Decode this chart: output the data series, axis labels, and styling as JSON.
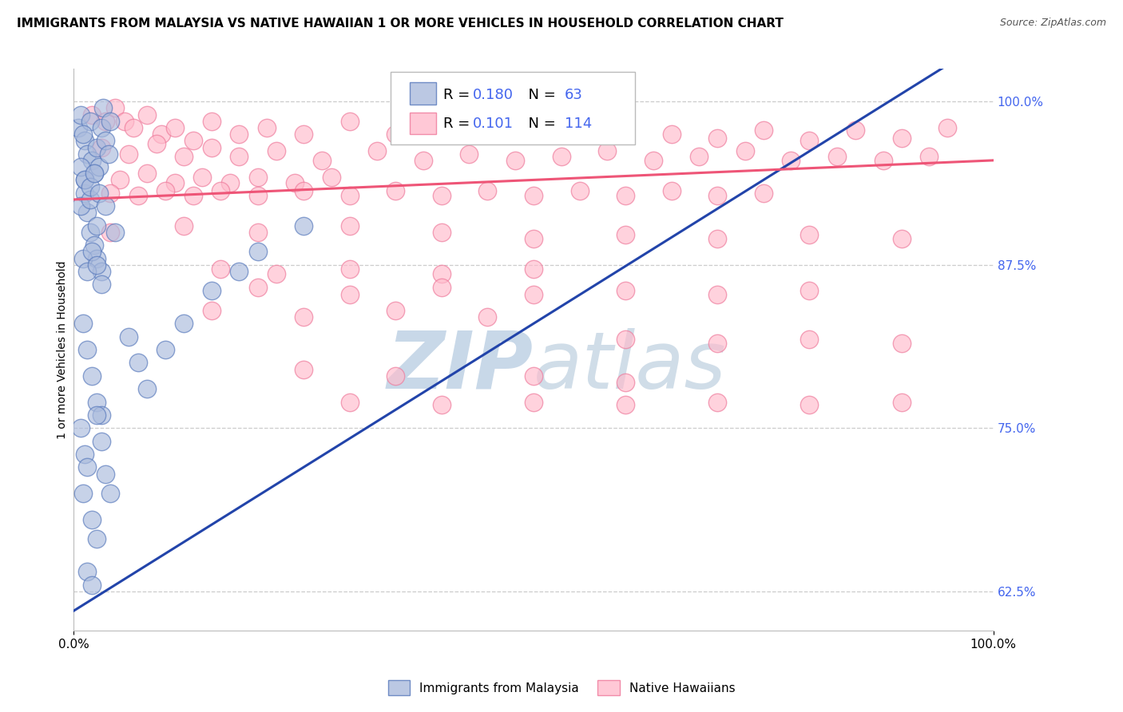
{
  "title": "IMMIGRANTS FROM MALAYSIA VS NATIVE HAWAIIAN 1 OR MORE VEHICLES IN HOUSEHOLD CORRELATION CHART",
  "source": "Source: ZipAtlas.com",
  "ylabel": "1 or more Vehicles in Household",
  "xlim": [
    0.0,
    1.0
  ],
  "ylim": [
    0.595,
    1.025
  ],
  "yticks": [
    0.625,
    0.75,
    0.875,
    1.0
  ],
  "ytick_labels": [
    "62.5%",
    "75.0%",
    "87.5%",
    "100.0%"
  ],
  "xticks": [
    0.0,
    1.0
  ],
  "xtick_labels": [
    "0.0%",
    "100.0%"
  ],
  "blue_R": 0.18,
  "blue_N": 63,
  "pink_R": 0.101,
  "pink_N": 114,
  "blue_face": "#AABBDD",
  "blue_edge": "#5577BB",
  "blue_line": "#2244AA",
  "pink_face": "#FFBBCC",
  "pink_edge": "#EE7799",
  "pink_line": "#EE5577",
  "background": "#FFFFFF",
  "grid_color": "#CCCCCC",
  "watermark": "ZIPatlas",
  "watermark_color": "#C8D8E8",
  "tick_color": "#4466EE",
  "title_fs": 11,
  "label_fs": 10,
  "tick_fs": 11,
  "blue_x": [
    0.005,
    0.008,
    0.012,
    0.015,
    0.018,
    0.01,
    0.02,
    0.022,
    0.025,
    0.028,
    0.03,
    0.032,
    0.035,
    0.038,
    0.04,
    0.012,
    0.015,
    0.018,
    0.022,
    0.025,
    0.008,
    0.012,
    0.018,
    0.025,
    0.03,
    0.01,
    0.015,
    0.02,
    0.025,
    0.03,
    0.008,
    0.012,
    0.015,
    0.01,
    0.02,
    0.025,
    0.015,
    0.02,
    0.025,
    0.03,
    0.035,
    0.04,
    0.06,
    0.07,
    0.08,
    0.1,
    0.12,
    0.15,
    0.18,
    0.2,
    0.25,
    0.01,
    0.015,
    0.02,
    0.025,
    0.03,
    0.008,
    0.012,
    0.018,
    0.022,
    0.028,
    0.035,
    0.045
  ],
  "blue_y": [
    0.98,
    0.99,
    0.97,
    0.96,
    0.985,
    0.975,
    0.955,
    0.945,
    0.965,
    0.95,
    0.98,
    0.995,
    0.97,
    0.96,
    0.985,
    0.93,
    0.915,
    0.9,
    0.89,
    0.88,
    0.92,
    0.94,
    0.925,
    0.905,
    0.87,
    0.83,
    0.81,
    0.79,
    0.77,
    0.76,
    0.75,
    0.73,
    0.72,
    0.7,
    0.68,
    0.665,
    0.64,
    0.63,
    0.76,
    0.74,
    0.715,
    0.7,
    0.82,
    0.8,
    0.78,
    0.81,
    0.83,
    0.855,
    0.87,
    0.885,
    0.905,
    0.88,
    0.87,
    0.885,
    0.875,
    0.86,
    0.95,
    0.94,
    0.935,
    0.945,
    0.93,
    0.92,
    0.9
  ],
  "pink_x": [
    0.02,
    0.035,
    0.045,
    0.055,
    0.065,
    0.08,
    0.095,
    0.11,
    0.13,
    0.15,
    0.18,
    0.21,
    0.25,
    0.3,
    0.35,
    0.4,
    0.45,
    0.5,
    0.55,
    0.6,
    0.65,
    0.7,
    0.75,
    0.8,
    0.85,
    0.9,
    0.95,
    0.03,
    0.06,
    0.09,
    0.12,
    0.15,
    0.18,
    0.22,
    0.27,
    0.33,
    0.38,
    0.43,
    0.48,
    0.53,
    0.58,
    0.63,
    0.68,
    0.73,
    0.78,
    0.83,
    0.88,
    0.93,
    0.05,
    0.08,
    0.11,
    0.14,
    0.17,
    0.2,
    0.24,
    0.28,
    0.04,
    0.07,
    0.1,
    0.13,
    0.16,
    0.2,
    0.25,
    0.3,
    0.35,
    0.4,
    0.45,
    0.5,
    0.55,
    0.6,
    0.65,
    0.7,
    0.75,
    0.04,
    0.12,
    0.2,
    0.3,
    0.4,
    0.5,
    0.6,
    0.7,
    0.8,
    0.9,
    0.16,
    0.22,
    0.3,
    0.4,
    0.5,
    0.2,
    0.3,
    0.4,
    0.5,
    0.6,
    0.7,
    0.8,
    0.15,
    0.25,
    0.35,
    0.45,
    0.6,
    0.7,
    0.8,
    0.9,
    0.25,
    0.35,
    0.3,
    0.4,
    0.5,
    0.6,
    0.7,
    0.8,
    0.9,
    0.5,
    0.6
  ],
  "pink_y": [
    0.99,
    0.985,
    0.995,
    0.985,
    0.98,
    0.99,
    0.975,
    0.98,
    0.97,
    0.985,
    0.975,
    0.98,
    0.975,
    0.985,
    0.975,
    0.98,
    0.975,
    0.98,
    0.975,
    0.98,
    0.975,
    0.972,
    0.978,
    0.97,
    0.978,
    0.972,
    0.98,
    0.965,
    0.96,
    0.968,
    0.958,
    0.965,
    0.958,
    0.962,
    0.955,
    0.962,
    0.955,
    0.96,
    0.955,
    0.958,
    0.962,
    0.955,
    0.958,
    0.962,
    0.955,
    0.958,
    0.955,
    0.958,
    0.94,
    0.945,
    0.938,
    0.942,
    0.938,
    0.942,
    0.938,
    0.942,
    0.93,
    0.928,
    0.932,
    0.928,
    0.932,
    0.928,
    0.932,
    0.928,
    0.932,
    0.928,
    0.932,
    0.928,
    0.932,
    0.928,
    0.932,
    0.928,
    0.93,
    0.9,
    0.905,
    0.9,
    0.905,
    0.9,
    0.895,
    0.898,
    0.895,
    0.898,
    0.895,
    0.872,
    0.868,
    0.872,
    0.868,
    0.872,
    0.858,
    0.852,
    0.858,
    0.852,
    0.855,
    0.852,
    0.855,
    0.84,
    0.835,
    0.84,
    0.835,
    0.818,
    0.815,
    0.818,
    0.815,
    0.795,
    0.79,
    0.77,
    0.768,
    0.77,
    0.768,
    0.77,
    0.768,
    0.77,
    0.79,
    0.785
  ]
}
